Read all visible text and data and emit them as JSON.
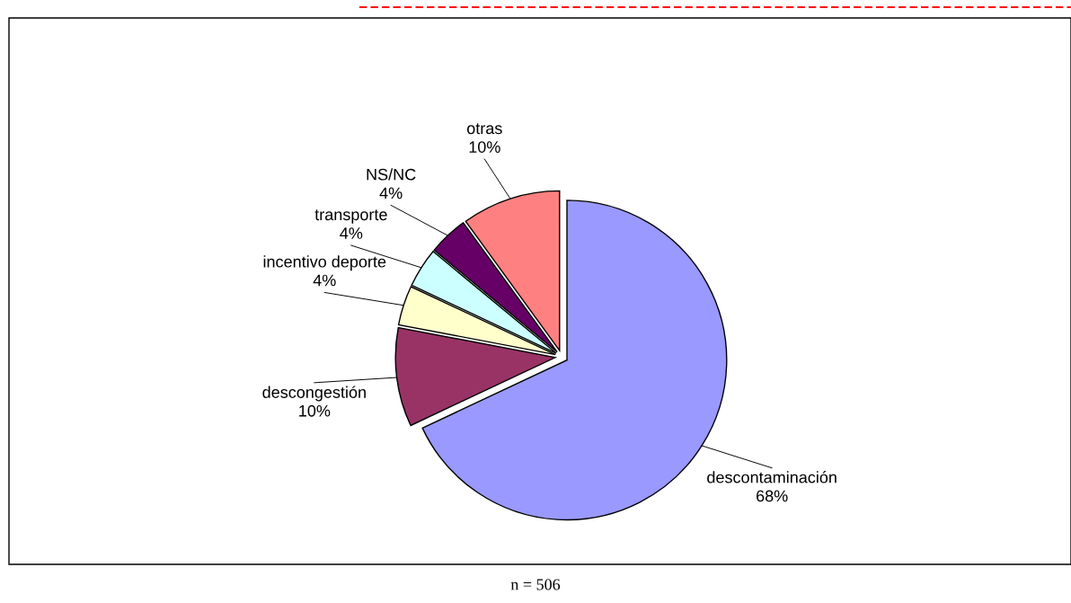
{
  "chart_data": {
    "type": "pie",
    "categories": [
      "descontaminación",
      "descongestión",
      "incentivo deporte",
      "transporte",
      "NS/NC",
      "otras"
    ],
    "values": [
      68,
      10,
      4,
      4,
      4,
      10
    ],
    "colors": [
      "#9999ff",
      "#993366",
      "#ffffcc",
      "#ccffff",
      "#660066",
      "#ff8080"
    ],
    "value_labels": [
      "68%",
      "10%",
      "4%",
      "4%",
      "4%",
      "10%"
    ],
    "annotations": [
      "n = 506"
    ],
    "legend": false
  }
}
